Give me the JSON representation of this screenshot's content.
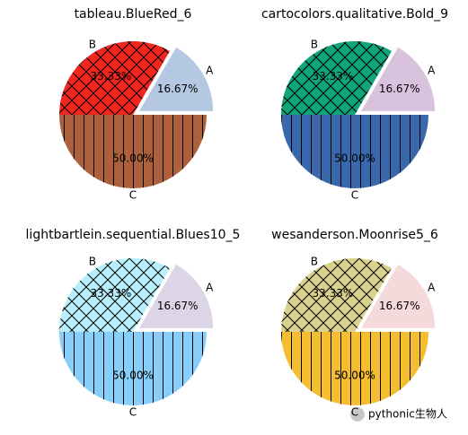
{
  "chart_data": [
    {
      "type": "pie",
      "title": "tableau.BlueRed_6",
      "categories": [
        "A",
        "B",
        "C"
      ],
      "values": [
        16.67,
        33.33,
        50.0
      ],
      "value_labels": [
        "16.67%",
        "33.33%",
        "50.00%"
      ],
      "colors": [
        "#b5c8e2",
        "#f02720",
        "#ac613c"
      ],
      "hatches": [
        null,
        "x",
        "|"
      ],
      "explode": [
        0.1,
        0,
        0
      ],
      "startangle": 0
    },
    {
      "type": "pie",
      "title": "cartocolors.qualitative.Bold_9",
      "categories": [
        "A",
        "B",
        "C"
      ],
      "values": [
        16.67,
        33.33,
        50.0
      ],
      "value_labels": [
        "16.67%",
        "33.33%",
        "50.00%"
      ],
      "colors": [
        "#d9c2dd",
        "#11a579",
        "#3969ac"
      ],
      "hatches": [
        null,
        "x",
        "|"
      ],
      "explode": [
        0.1,
        0,
        0
      ],
      "startangle": 0
    },
    {
      "type": "pie",
      "title": "lightbartlein.sequential.Blues10_5",
      "categories": [
        "A",
        "B",
        "C"
      ],
      "values": [
        16.67,
        33.33,
        50.0
      ],
      "value_labels": [
        "16.67%",
        "33.33%",
        "50.00%"
      ],
      "colors": [
        "#dbd5e7",
        "#b7eefa",
        "#87cffa"
      ],
      "hatches": [
        null,
        "x",
        "|"
      ],
      "explode": [
        0.1,
        0,
        0
      ],
      "startangle": 0
    },
    {
      "type": "pie",
      "title": "wesanderson.Moonrise5_6",
      "categories": [
        "A",
        "B",
        "C"
      ],
      "values": [
        16.67,
        33.33,
        50.0
      ],
      "value_labels": [
        "16.67%",
        "33.33%",
        "50.00%"
      ],
      "colors": [
        "#f4dada",
        "#d9d18c",
        "#f5bd30"
      ],
      "hatches": [
        null,
        "x",
        "|"
      ],
      "explode": [
        0.1,
        0,
        0
      ],
      "startangle": 0
    }
  ],
  "watermark": "pythonic生物人"
}
